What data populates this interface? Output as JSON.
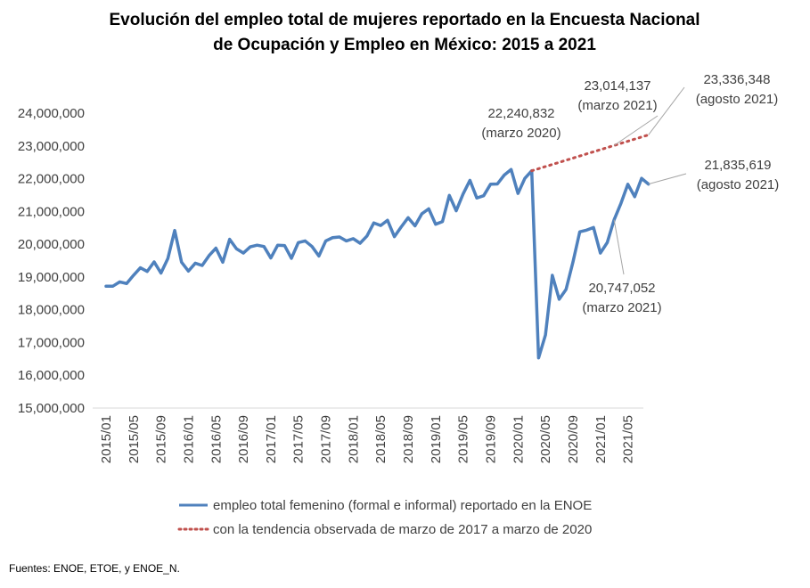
{
  "chart_data": {
    "type": "line",
    "title": [
      "Evolución del empleo total de mujeres reportado en la Encuesta Nacional",
      "de Ocupación y Empleo en México: 2015 a 2021"
    ],
    "xlabel": "",
    "ylabel": "",
    "ylim": [
      15000000,
      24000000
    ],
    "yticks": [
      15000000,
      16000000,
      17000000,
      18000000,
      19000000,
      20000000,
      21000000,
      22000000,
      23000000,
      24000000
    ],
    "ytick_labels": [
      "15,000,000",
      "16,000,000",
      "17,000,000",
      "18,000,000",
      "19,000,000",
      "20,000,000",
      "21,000,000",
      "22,000,000",
      "23,000,000",
      "24,000,000"
    ],
    "xtick_labels": [
      "2015/01",
      "2015/05",
      "2015/09",
      "2016/01",
      "2016/05",
      "2016/09",
      "2017/01",
      "2017/05",
      "2017/09",
      "2018/01",
      "2018/05",
      "2018/09",
      "2019/01",
      "2019/05",
      "2019/09",
      "2020/01",
      "2020/05",
      "2020/09",
      "2021/01",
      "2021/05"
    ],
    "series": [
      {
        "name": "empleo total femenino (formal e informal) reportado en la ENOE",
        "color": "#4F81BD",
        "style": "solid",
        "x": [
          "2015/01",
          "2015/02",
          "2015/03",
          "2015/04",
          "2015/05",
          "2015/06",
          "2015/07",
          "2015/08",
          "2015/09",
          "2015/10",
          "2015/11",
          "2015/12",
          "2016/01",
          "2016/02",
          "2016/03",
          "2016/04",
          "2016/05",
          "2016/06",
          "2016/07",
          "2016/08",
          "2016/09",
          "2016/10",
          "2016/11",
          "2016/12",
          "2017/01",
          "2017/02",
          "2017/03",
          "2017/04",
          "2017/05",
          "2017/06",
          "2017/07",
          "2017/08",
          "2017/09",
          "2017/10",
          "2017/11",
          "2017/12",
          "2018/01",
          "2018/02",
          "2018/03",
          "2018/04",
          "2018/05",
          "2018/06",
          "2018/07",
          "2018/08",
          "2018/09",
          "2018/10",
          "2018/11",
          "2018/12",
          "2019/01",
          "2019/02",
          "2019/03",
          "2019/04",
          "2019/05",
          "2019/06",
          "2019/07",
          "2019/08",
          "2019/09",
          "2019/10",
          "2019/11",
          "2019/12",
          "2020/01",
          "2020/02",
          "2020/03",
          "2020/04",
          "2020/05",
          "2020/06",
          "2020/07",
          "2020/08",
          "2020/09",
          "2020/10",
          "2020/11",
          "2020/12",
          "2021/01",
          "2021/02",
          "2021/03",
          "2021/04",
          "2021/05",
          "2021/06",
          "2021/07",
          "2021/08"
        ],
        "values": [
          18720000,
          18720000,
          18850000,
          18800000,
          19050000,
          19280000,
          19170000,
          19460000,
          19120000,
          19560000,
          20420000,
          19450000,
          19180000,
          19420000,
          19350000,
          19650000,
          19880000,
          19450000,
          20150000,
          19860000,
          19730000,
          19920000,
          19970000,
          19930000,
          19580000,
          19970000,
          19960000,
          19570000,
          20050000,
          20100000,
          19930000,
          19640000,
          20100000,
          20200000,
          20220000,
          20100000,
          20170000,
          20030000,
          20250000,
          20650000,
          20570000,
          20730000,
          20230000,
          20530000,
          20810000,
          20560000,
          20930000,
          21080000,
          20610000,
          20690000,
          21490000,
          21020000,
          21530000,
          21950000,
          21410000,
          21480000,
          21830000,
          21840000,
          22110000,
          22280000,
          21550000,
          22010000,
          22240832,
          16530000,
          17230000,
          19050000,
          18320000,
          18620000,
          19450000,
          20380000,
          20430000,
          20510000,
          19730000,
          20050000,
          20747052,
          21250000,
          21830000,
          21450000,
          22010000,
          21835619
        ]
      },
      {
        "name": "con la tendencia observada de marzo de 2017 a marzo de 2020",
        "color": "#C0504D",
        "style": "dotted",
        "x": [
          "2020/03",
          "2021/03",
          "2021/08"
        ],
        "values": [
          22240832,
          23014137,
          23336348
        ]
      }
    ],
    "annotations": [
      {
        "lines": [
          "22,240,832",
          "(marzo 2020)"
        ],
        "x": "2020/03",
        "y": 22240832
      },
      {
        "lines": [
          "23,014,137",
          "(marzo 2021)"
        ],
        "x": "2021/03",
        "y": 23014137
      },
      {
        "lines": [
          "23,336,348",
          "(agosto 2021)"
        ],
        "x": "2021/08",
        "y": 23336348
      },
      {
        "lines": [
          "21,835,619",
          "(agosto 2021)"
        ],
        "x": "2021/08",
        "y": 21835619
      },
      {
        "lines": [
          "20,747,052",
          "(marzo 2021)"
        ],
        "x": "2021/03",
        "y": 20747052
      }
    ],
    "legend_position": "bottom",
    "grid": false
  },
  "footer": {
    "source": "Fuentes: ENOE, ETOE, y ENOE_N."
  }
}
